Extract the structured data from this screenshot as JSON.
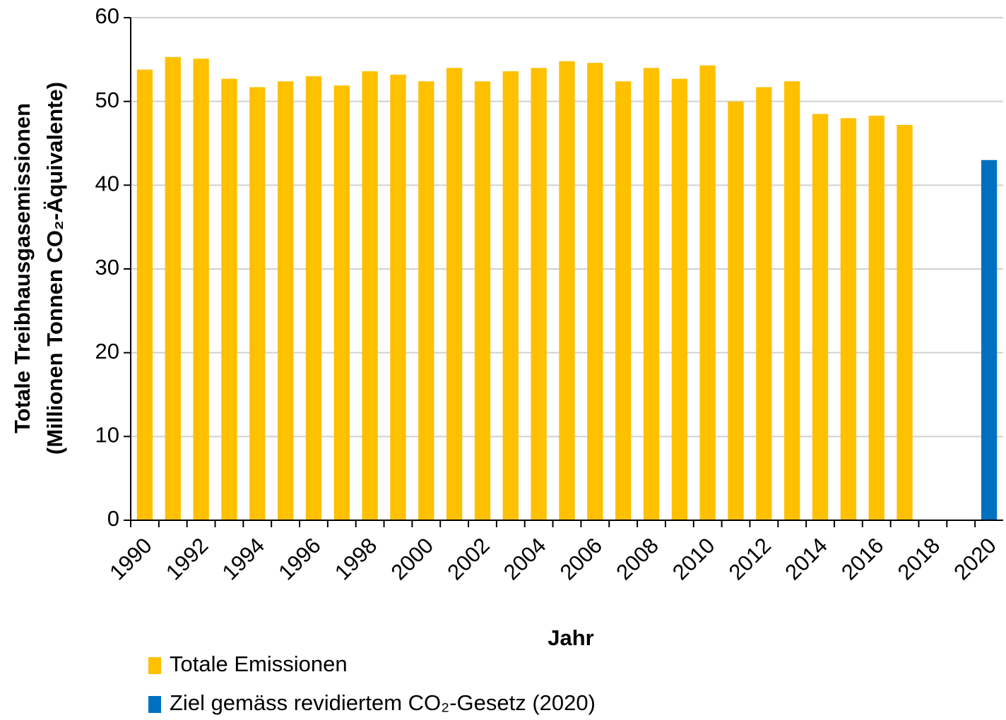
{
  "chart_data": {
    "type": "bar",
    "xlabel": "Jahr",
    "ylabel": [
      "Totale Treibhausgasemissionen",
      "(Millionen Tonnen CO₂-Äquivalente)"
    ],
    "categories": [
      "1990",
      null,
      "1992",
      null,
      "1994",
      null,
      "1996",
      null,
      "1998",
      null,
      "2000",
      null,
      "2002",
      null,
      "2004",
      null,
      "2006",
      null,
      "2008",
      null,
      "2010",
      null,
      "2012",
      null,
      "2014",
      null,
      "2016",
      null,
      "2018",
      null,
      "2020"
    ],
    "series": [
      {
        "name": "Totale Emissionen",
        "color": "#ffc000",
        "values": [
          53.8,
          55.3,
          55.1,
          52.7,
          51.7,
          52.4,
          53.0,
          51.9,
          53.6,
          53.2,
          52.4,
          54.0,
          52.4,
          53.6,
          54.0,
          54.8,
          54.6,
          52.4,
          54.0,
          52.7,
          54.3,
          50.0,
          51.7,
          52.4,
          48.5,
          48.0,
          48.3,
          47.2,
          null,
          null,
          null
        ]
      },
      {
        "name": "Ziel gemäss revidiertem CO₂-Gesetz (2020)",
        "color": "#0070c0",
        "values": [
          null,
          null,
          null,
          null,
          null,
          null,
          null,
          null,
          null,
          null,
          null,
          null,
          null,
          null,
          null,
          null,
          null,
          null,
          null,
          null,
          null,
          null,
          null,
          null,
          null,
          null,
          null,
          null,
          null,
          null,
          43.0
        ]
      }
    ],
    "ylim": [
      0,
      60
    ],
    "yticks": [
      0,
      10,
      20,
      30,
      40,
      50,
      60
    ],
    "grid": true,
    "legend": "bottom-left"
  }
}
